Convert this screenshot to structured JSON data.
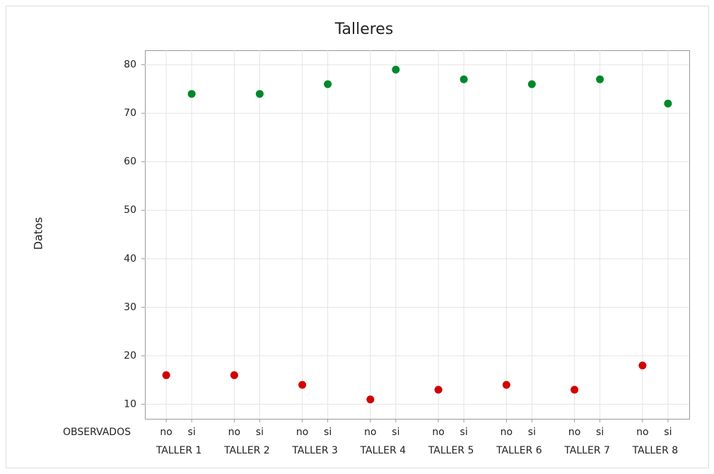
{
  "chart_data": {
    "type": "scatter",
    "title": "Talleres",
    "y_label": "Datos",
    "x_label": "OBSERVADOS",
    "groups": [
      "TALLER 1",
      "TALLER 2",
      "TALLER 3",
      "TALLER 4",
      "TALLER 5",
      "TALLER 6",
      "TALLER 7",
      "TALLER 8"
    ],
    "series": [
      {
        "name": "no",
        "color": "#d10000",
        "values": [
          16,
          16,
          14,
          11,
          13,
          14,
          13,
          18
        ]
      },
      {
        "name": "si",
        "color": "#00882a",
        "values": [
          74,
          74,
          76,
          79,
          77,
          76,
          77,
          72
        ]
      }
    ],
    "ylim": [
      7,
      83
    ],
    "yticks": [
      10,
      20,
      30,
      40,
      50,
      60,
      70,
      80
    ],
    "grid": true
  }
}
